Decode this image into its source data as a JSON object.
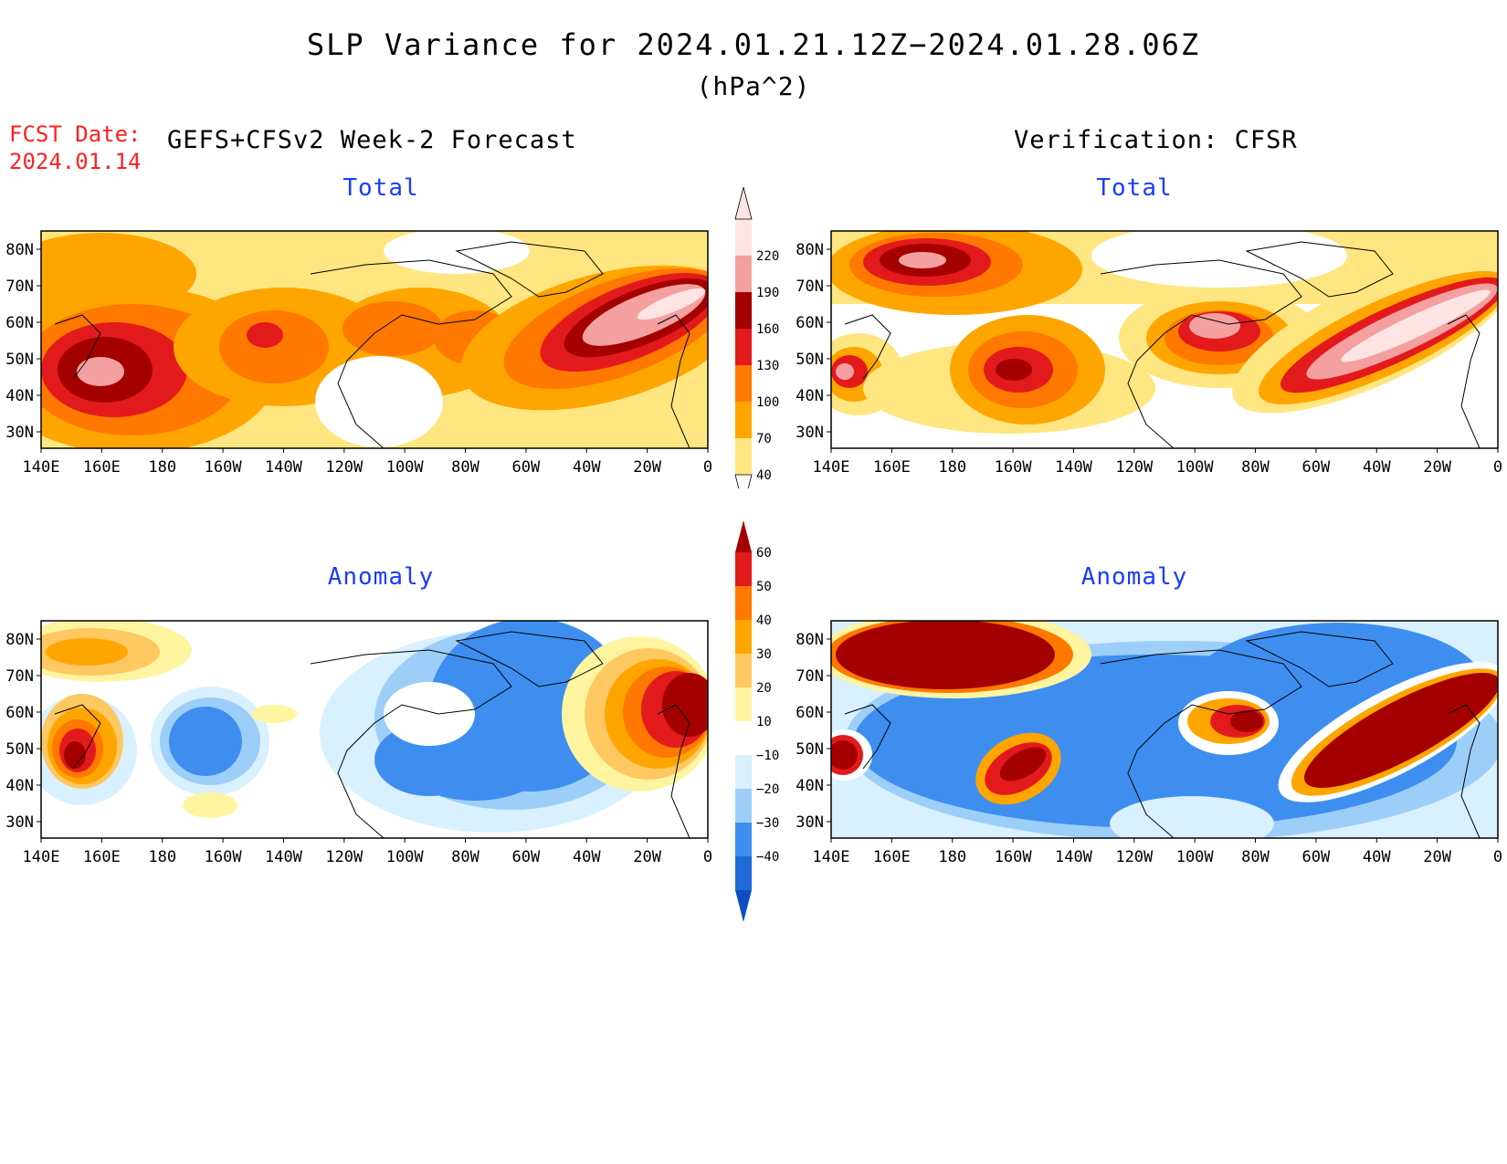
{
  "title": "SLP Variance for 2024.01.21.12Z−2024.01.28.06Z",
  "units": "(hPa^2)",
  "fcst_date_label": "FCST Date:",
  "fcst_date": "2024.01.14",
  "left_header": "GEFS+CFSv2 Week-2 Forecast",
  "right_header": "Verification: CFSR",
  "panels": [
    {
      "title": "Total"
    },
    {
      "title": "Total"
    },
    {
      "title": "Anomaly"
    },
    {
      "title": "Anomaly"
    }
  ],
  "lon_labels": [
    "140E",
    "160E",
    "180",
    "160W",
    "140W",
    "120W",
    "100W",
    "80W",
    "60W",
    "40W",
    "20W",
    "0"
  ],
  "lat_labels": [
    "80N",
    "70N",
    "60N",
    "50N",
    "40N",
    "30N"
  ],
  "total_colorbar": {
    "levels": [
      "40",
      "70",
      "100",
      "130",
      "160",
      "190",
      "220"
    ],
    "colors": [
      "#ffe680",
      "#ffa500",
      "#ff7800",
      "#e31a1c",
      "#a50000",
      "#f4a0a0",
      "#ffe4e4"
    ]
  },
  "anomaly_colorbar": {
    "levels": [
      "60",
      "50",
      "40",
      "30",
      "20",
      "10",
      "−10",
      "−20",
      "−30",
      "−40"
    ],
    "colors": [
      "#a50000",
      "#e31a1c",
      "#ff7800",
      "#ffa500",
      "#ffc860",
      "#fff5a0",
      "#ffffff",
      "#d8f0ff",
      "#9ccef8",
      "#3e8ef0",
      "#1f6ad8",
      "#0d4fc0"
    ]
  }
}
